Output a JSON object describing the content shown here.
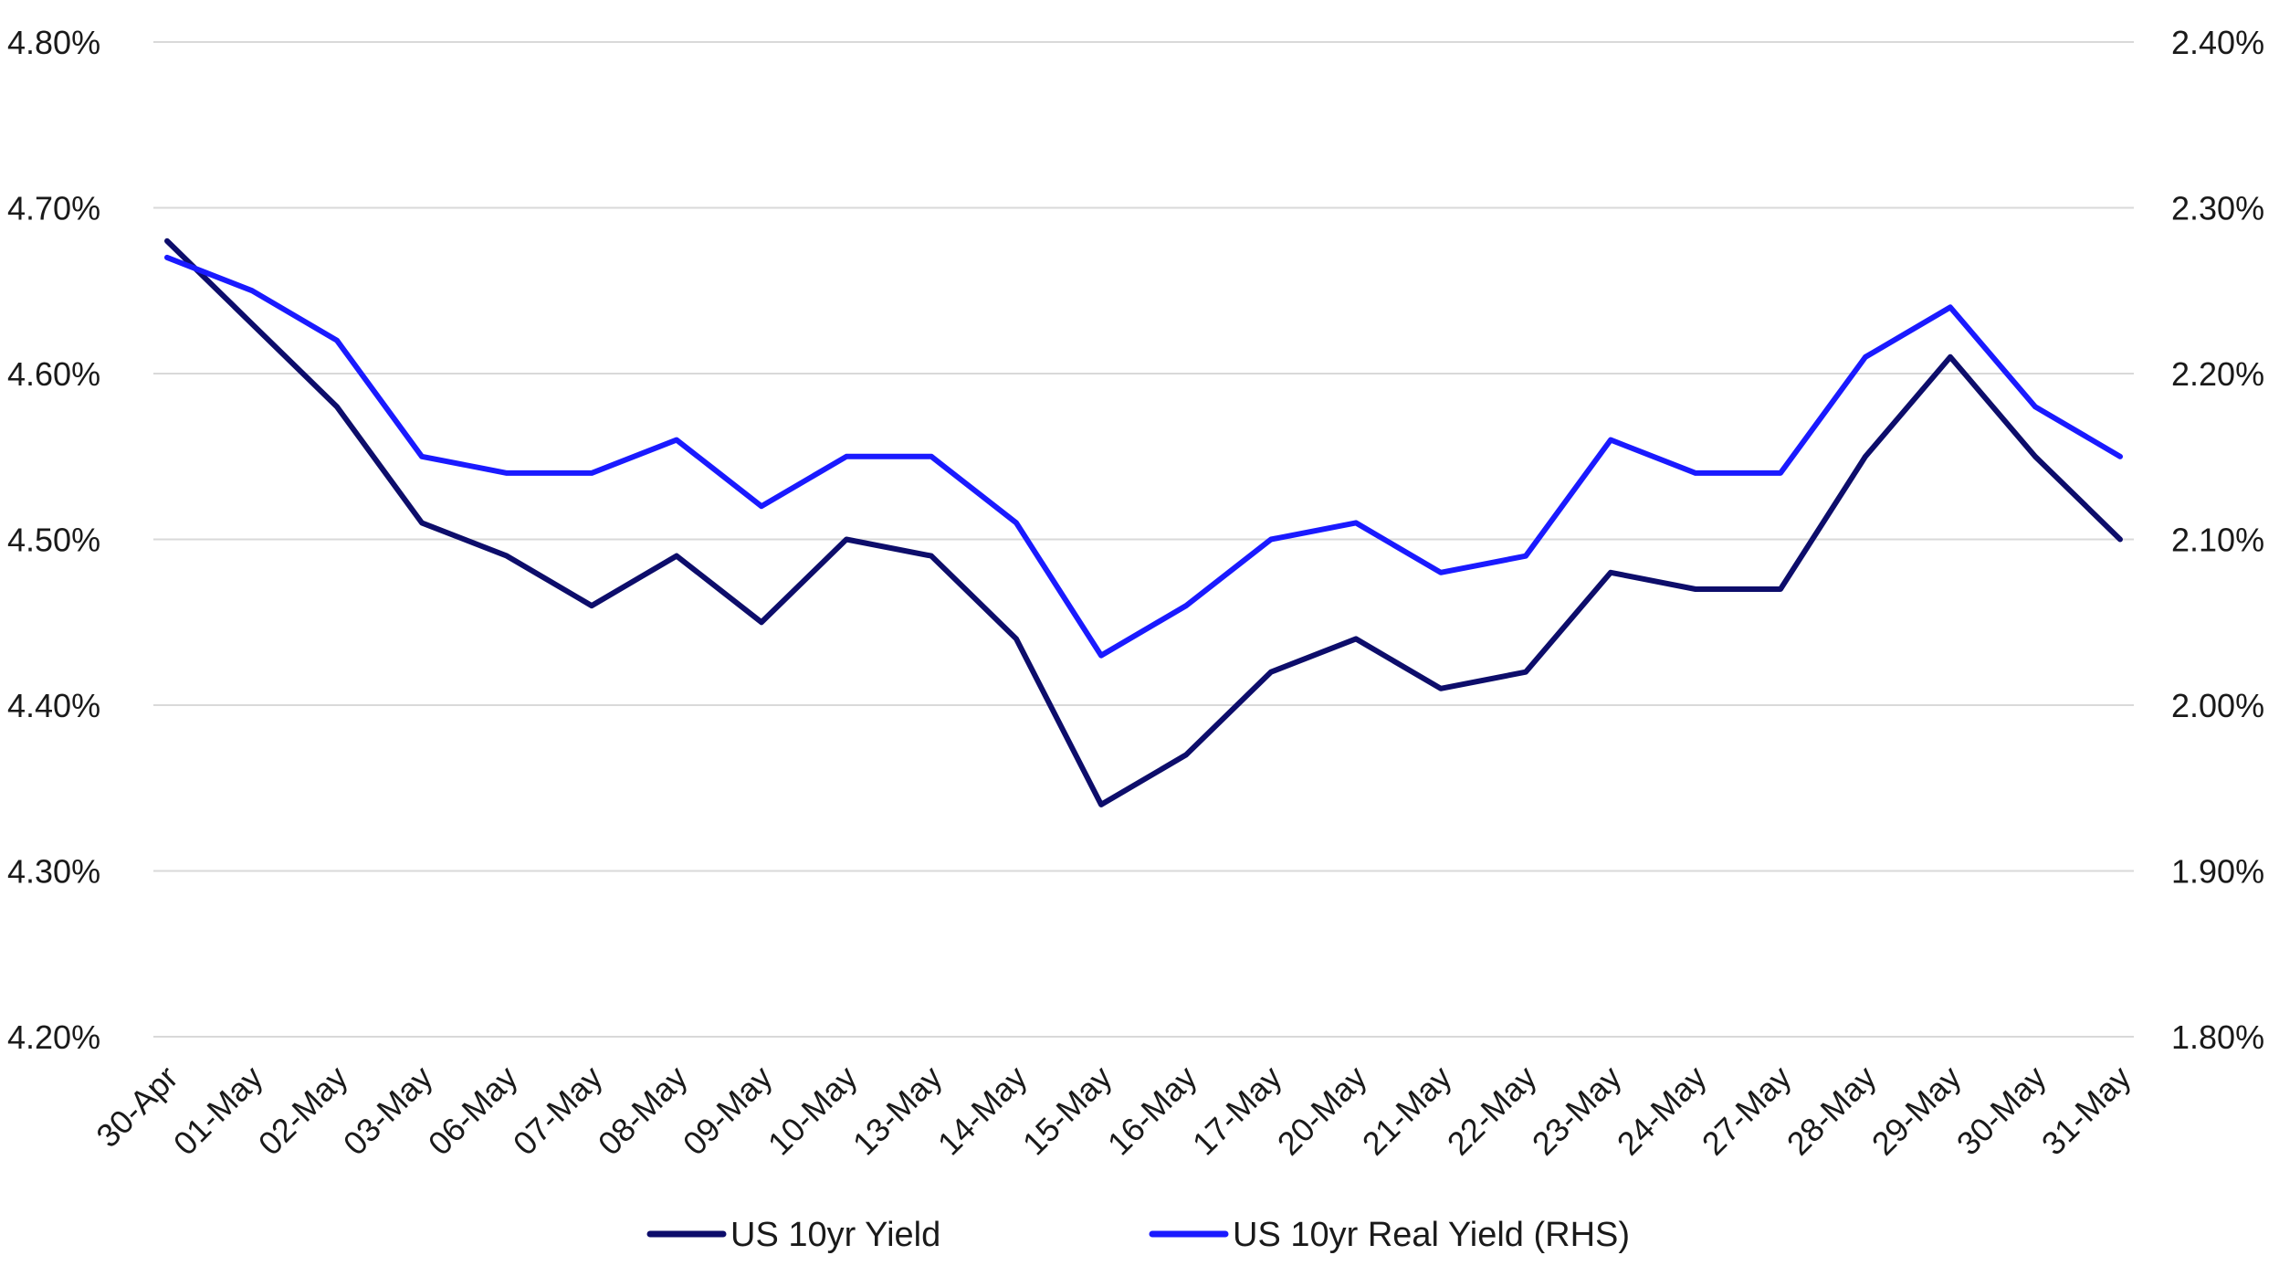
{
  "chart_data": {
    "type": "line",
    "title": "",
    "xlabel": "",
    "ylabel": "",
    "categories": [
      "30-Apr",
      "01-May",
      "02-May",
      "03-May",
      "06-May",
      "07-May",
      "08-May",
      "09-May",
      "10-May",
      "13-May",
      "14-May",
      "15-May",
      "16-May",
      "17-May",
      "20-May",
      "21-May",
      "22-May",
      "23-May",
      "24-May",
      "27-May",
      "28-May",
      "29-May",
      "30-May",
      "31-May"
    ],
    "y_left": {
      "ylim": [
        4.2,
        4.8
      ],
      "ticks": [
        4.2,
        4.3,
        4.4,
        4.5,
        4.6,
        4.7,
        4.8
      ],
      "tick_labels": [
        "4.20%",
        "4.30%",
        "4.40%",
        "4.50%",
        "4.60%",
        "4.70%",
        "4.80%"
      ]
    },
    "y_right": {
      "ylim": [
        1.8,
        2.4
      ],
      "ticks": [
        1.8,
        1.9,
        2.0,
        2.1,
        2.2,
        2.3,
        2.4
      ],
      "tick_labels": [
        "1.80%",
        "1.90%",
        "2.00%",
        "2.10%",
        "2.20%",
        "2.30%",
        "2.40%"
      ]
    },
    "grid": true,
    "legend_position": "bottom-center",
    "series": [
      {
        "name": "US 10yr Yield",
        "axis": "left",
        "color": "#0d0d6b",
        "values": [
          4.68,
          4.63,
          4.58,
          4.51,
          4.49,
          4.46,
          4.49,
          4.45,
          4.5,
          4.49,
          4.44,
          4.34,
          4.37,
          4.42,
          4.44,
          4.41,
          4.42,
          4.48,
          4.47,
          4.47,
          4.55,
          4.61,
          4.55,
          4.5
        ]
      },
      {
        "name": "US 10yr Real Yield (RHS)",
        "axis": "right",
        "color": "#1a1aff",
        "values": [
          2.27,
          2.25,
          2.22,
          2.15,
          2.14,
          2.14,
          2.16,
          2.12,
          2.15,
          2.15,
          2.11,
          2.03,
          2.06,
          2.1,
          2.11,
          2.08,
          2.09,
          2.16,
          2.14,
          2.14,
          2.21,
          2.24,
          2.18,
          2.15
        ]
      }
    ]
  }
}
